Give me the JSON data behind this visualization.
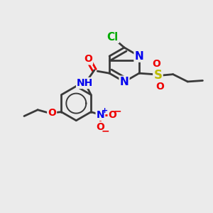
{
  "bg_color": "#ebebeb",
  "bond_color": "#3a3a3a",
  "bond_width": 2.0,
  "colors": {
    "C": "#3a3a3a",
    "N": "#0000ee",
    "O": "#ee0000",
    "S": "#bbbb00",
    "Cl": "#00aa00",
    "H": "#3a3a3a"
  },
  "font_size": 11,
  "font_size_small": 10
}
